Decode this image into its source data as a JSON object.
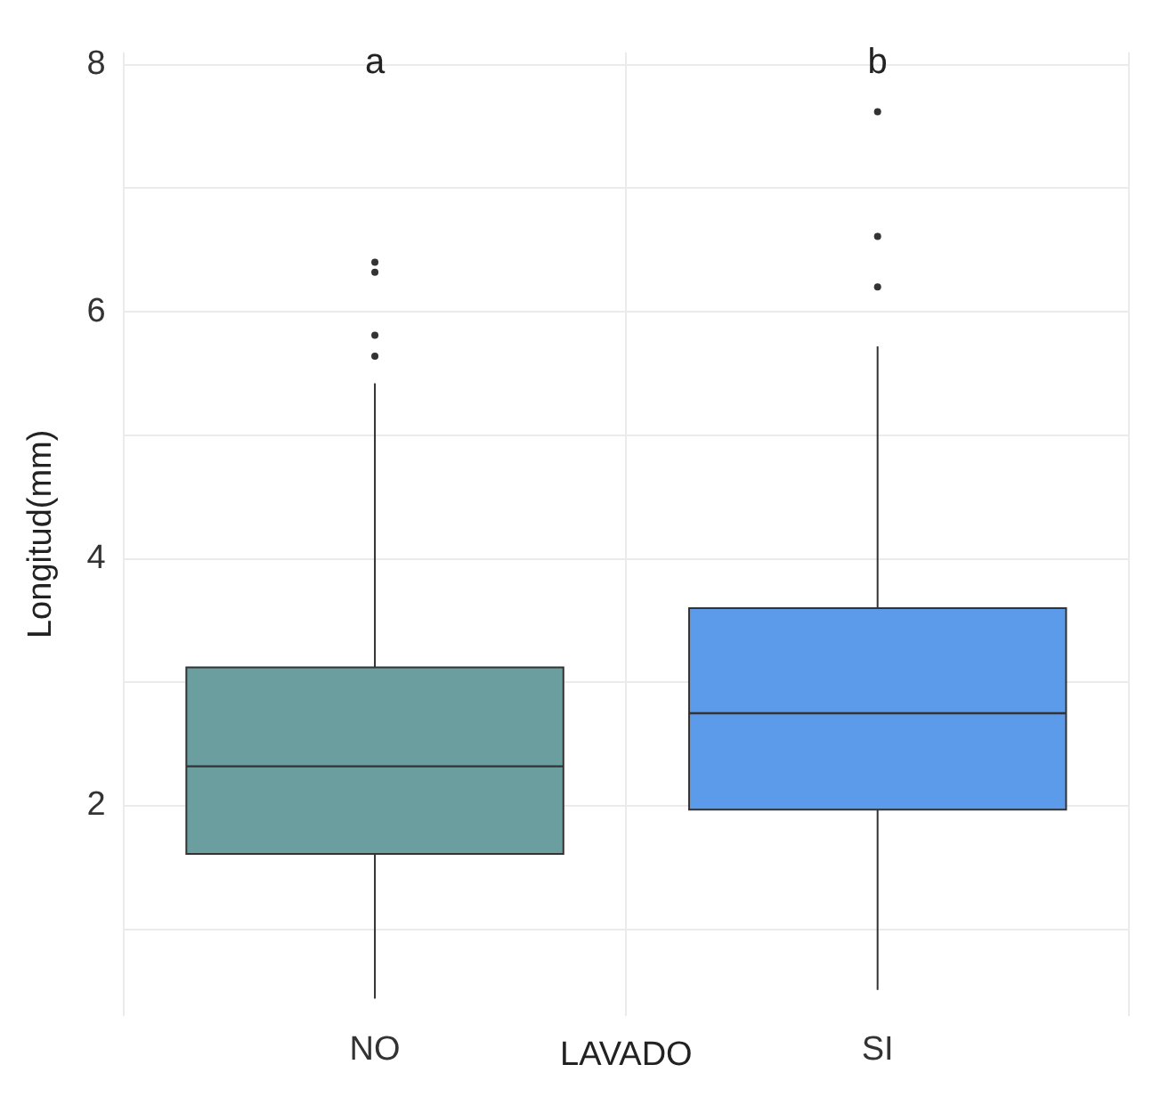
{
  "chart_data": {
    "type": "box",
    "xlabel": "LAVADO",
    "ylabel": "Longitud(mm)",
    "categories": [
      "NO",
      "SI"
    ],
    "colors": [
      "#6b9e9e",
      "#5b9bea"
    ],
    "boxes": [
      {
        "low": 0.44,
        "q1": 1.61,
        "median": 2.32,
        "q3": 3.12,
        "high": 5.42,
        "outliers": [
          6.4,
          6.32,
          5.81,
          5.64
        ]
      },
      {
        "low": 0.51,
        "q1": 1.97,
        "median": 2.75,
        "q3": 3.6,
        "high": 5.72,
        "outliers": [
          7.62,
          6.61,
          6.2
        ]
      }
    ],
    "ylim": [
      0.3,
      8.1
    ],
    "yticks": [
      {
        "value": 1,
        "label": null
      },
      2,
      {
        "value": 3,
        "label": null
      },
      4,
      {
        "value": 5,
        "label": null
      },
      6,
      {
        "value": 7,
        "label": null
      },
      8
    ],
    "grid": true,
    "legend": false,
    "annotations": [
      "a",
      "b"
    ]
  }
}
